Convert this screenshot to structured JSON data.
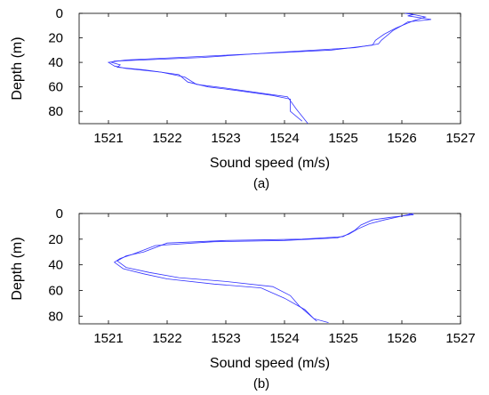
{
  "figure": {
    "subplot_labels": [
      "(a)",
      "(b)"
    ]
  },
  "chart_data": [
    {
      "type": "line",
      "caption": "(a)",
      "xlabel": "Sound speed (m/s)",
      "ylabel": "Depth (m)",
      "xlim": [
        1520.5,
        1527
      ],
      "ylim": [
        90,
        0
      ],
      "xticks": [
        1521,
        1522,
        1523,
        1524,
        1525,
        1526,
        1527
      ],
      "yticks": [
        0,
        20,
        40,
        60,
        80
      ],
      "y_inverted": true,
      "grid": false,
      "color": "#3333ff",
      "series": [
        {
          "points": [
            [
              1526.05,
              0
            ],
            [
              1526.2,
              1
            ],
            [
              1526.1,
              2
            ],
            [
              1526.5,
              5
            ],
            [
              1526.1,
              7
            ],
            [
              1526.0,
              10
            ],
            [
              1525.85,
              14
            ],
            [
              1525.75,
              18
            ],
            [
              1525.65,
              22
            ],
            [
              1525.6,
              25
            ],
            [
              1525.2,
              28
            ],
            [
              1523.8,
              32
            ],
            [
              1522.6,
              36
            ],
            [
              1521.6,
              38
            ],
            [
              1521.1,
              39
            ],
            [
              1521.05,
              40
            ],
            [
              1521.2,
              42
            ],
            [
              1521.15,
              44
            ],
            [
              1521.6,
              46
            ],
            [
              1522.2,
              50
            ],
            [
              1522.35,
              56
            ],
            [
              1522.7,
              60
            ],
            [
              1523.2,
              63
            ],
            [
              1523.8,
              67
            ],
            [
              1524.1,
              70
            ],
            [
              1524.1,
              80
            ],
            [
              1524.3,
              88
            ]
          ]
        },
        {
          "points": [
            [
              1526.1,
              0
            ],
            [
              1526.4,
              3
            ],
            [
              1526.2,
              6
            ],
            [
              1525.9,
              12
            ],
            [
              1525.7,
              17
            ],
            [
              1525.55,
              22
            ],
            [
              1525.5,
              26
            ],
            [
              1524.8,
              30
            ],
            [
              1523.5,
              33
            ],
            [
              1522.2,
              36
            ],
            [
              1521.3,
              38
            ],
            [
              1521.0,
              40
            ],
            [
              1521.1,
              43
            ],
            [
              1521.3,
              45
            ],
            [
              1521.9,
              48
            ],
            [
              1522.3,
              52
            ],
            [
              1522.5,
              58
            ],
            [
              1523.0,
              61
            ],
            [
              1523.6,
              65
            ],
            [
              1524.05,
              68
            ],
            [
              1524.2,
              78
            ],
            [
              1524.4,
              90
            ]
          ]
        }
      ]
    },
    {
      "type": "line",
      "caption": "(b)",
      "xlabel": "Sound speed (m/s)",
      "ylabel": "Depth (m)",
      "xlim": [
        1520.5,
        1527
      ],
      "ylim": [
        86,
        0
      ],
      "xticks": [
        1521,
        1522,
        1523,
        1524,
        1525,
        1526,
        1527
      ],
      "yticks": [
        0,
        20,
        40,
        60,
        80
      ],
      "y_inverted": true,
      "grid": false,
      "color": "#3333ff",
      "series": [
        {
          "points": [
            [
              1526.1,
              0
            ],
            [
              1526.2,
              1
            ],
            [
              1525.8,
              3
            ],
            [
              1525.5,
              5
            ],
            [
              1525.3,
              9
            ],
            [
              1525.2,
              13
            ],
            [
              1525.0,
              18
            ],
            [
              1524.3,
              20
            ],
            [
              1523.0,
              21
            ],
            [
              1522.0,
              23
            ],
            [
              1521.6,
              30
            ],
            [
              1521.3,
              33
            ],
            [
              1521.15,
              37
            ],
            [
              1521.3,
              42
            ],
            [
              1521.7,
              46
            ],
            [
              1522.2,
              50
            ],
            [
              1523.0,
              53
            ],
            [
              1523.8,
              57
            ],
            [
              1524.1,
              64
            ],
            [
              1524.25,
              72
            ],
            [
              1524.45,
              80
            ],
            [
              1524.55,
              84
            ]
          ]
        },
        {
          "points": [
            [
              1526.2,
              0
            ],
            [
              1526.0,
              2
            ],
            [
              1525.7,
              5
            ],
            [
              1525.45,
              8
            ],
            [
              1525.25,
              12
            ],
            [
              1525.1,
              16
            ],
            [
              1524.9,
              19
            ],
            [
              1524.0,
              21
            ],
            [
              1522.8,
              22
            ],
            [
              1521.8,
              25
            ],
            [
              1521.4,
              32
            ],
            [
              1521.2,
              35
            ],
            [
              1521.1,
              38
            ],
            [
              1521.25,
              43
            ],
            [
              1521.6,
              47
            ],
            [
              1522.0,
              51
            ],
            [
              1522.8,
              55
            ],
            [
              1523.6,
              58
            ],
            [
              1524.0,
              66
            ],
            [
              1524.35,
              75
            ],
            [
              1524.5,
              82
            ],
            [
              1524.75,
              85
            ]
          ]
        }
      ]
    }
  ]
}
